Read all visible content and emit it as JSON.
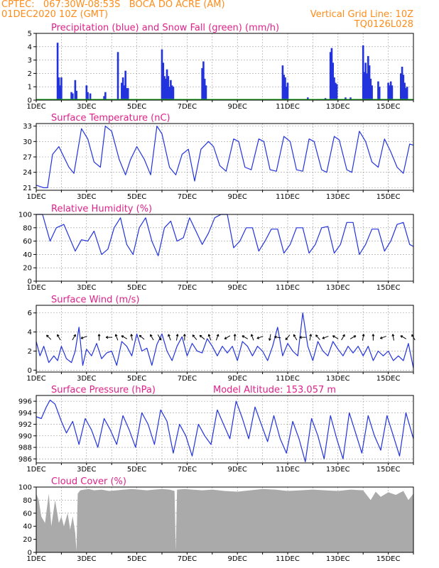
{
  "header": {
    "line1": "CPTEC:   067:30W-08:53S   BOCA DO ACRE (AM)",
    "line2": "01DEC2020 10Z (GMT)",
    "grid_note": "Vertical Grid Line: 10Z",
    "code": "TQ0126L028"
  },
  "colors": {
    "header": "#ff8c1a",
    "title": "#e0218a",
    "line": "#2233dd",
    "snow": "#22aa22",
    "cloud": "#aaaaaa",
    "arrow": "#000000"
  },
  "x_labels": [
    "1DEC",
    "3DEC",
    "5DEC",
    "7DEC",
    "9DEC",
    "11DEC",
    "13DEC",
    "15DEC"
  ],
  "chart_data": [
    {
      "type": "bar",
      "title": "Precipitation (blue) and Snow Fall (green) (mm/h)",
      "ylim": [
        0,
        5
      ],
      "yticks": [
        0,
        1,
        2,
        3,
        4,
        5
      ],
      "x_days": [
        1.85,
        1.9,
        1.95,
        2.0,
        2.4,
        2.45,
        2.55,
        2.6,
        3.0,
        3.05,
        3.15,
        3.7,
        3.75,
        4.25,
        4.4,
        4.45,
        4.5,
        4.55,
        4.6,
        4.65,
        6.0,
        6.05,
        6.1,
        6.15,
        6.2,
        6.25,
        6.3,
        6.35,
        6.4,
        6.45,
        7.6,
        7.65,
        7.7,
        7.75,
        10.8,
        10.85,
        10.9,
        10.95,
        11.0,
        11.8,
        12.5,
        12.7,
        12.75,
        12.8,
        12.85,
        12.9,
        12.95,
        13.3,
        13.5,
        14.0,
        14.05,
        14.1,
        14.15,
        14.2,
        14.25,
        14.3,
        14.35,
        14.6,
        14.65,
        15.0,
        15.05,
        15.1,
        15.15,
        15.5,
        15.55,
        15.6,
        15.65,
        15.7,
        15.75
      ],
      "values": [
        4.3,
        1.7,
        1.1,
        1.7,
        0.6,
        0.5,
        1.5,
        0.7,
        1.1,
        0.6,
        0.5,
        0.3,
        0.6,
        3.6,
        1.3,
        1.7,
        1.1,
        2.2,
        0.9,
        0.9,
        3.8,
        2.8,
        1.8,
        1.6,
        2.3,
        1.8,
        1.0,
        1.5,
        1.1,
        1.0,
        2.4,
        2.9,
        1.6,
        1.1,
        2.6,
        1.9,
        1.7,
        1.0,
        1.3,
        0.2,
        0.15,
        3.6,
        3.9,
        2.8,
        1.7,
        1.3,
        1.2,
        0.2,
        0.2,
        4.1,
        2.1,
        2.8,
        2.0,
        3.3,
        2.6,
        1.6,
        1.1,
        1.4,
        1.0,
        1.3,
        1.1,
        1.4,
        1.1,
        2.0,
        2.5,
        1.9,
        1.3,
        0.9,
        1.0
      ],
      "snow": 0
    },
    {
      "type": "line",
      "title": "Surface Temperature (nC)",
      "ylim": [
        20.5,
        33.5
      ],
      "yticks": [
        21,
        24,
        27,
        30,
        33
      ],
      "x_days": [
        1.0,
        1.3,
        1.45,
        1.65,
        1.9,
        2.1,
        2.3,
        2.5,
        2.8,
        3.05,
        3.3,
        3.55,
        3.75,
        4.0,
        4.3,
        4.55,
        4.75,
        5.0,
        5.3,
        5.55,
        5.8,
        6.0,
        6.3,
        6.55,
        6.8,
        7.05,
        7.3,
        7.55,
        7.85,
        8.05,
        8.3,
        8.55,
        8.85,
        9.05,
        9.3,
        9.55,
        9.85,
        10.05,
        10.3,
        10.55,
        10.85,
        11.1,
        11.35,
        11.6,
        11.85,
        12.05,
        12.35,
        12.55,
        12.85,
        13.05,
        13.35,
        13.55,
        13.85,
        14.1,
        14.35,
        14.6,
        14.85,
        15.1,
        15.35,
        15.6,
        15.85,
        16.0
      ],
      "values": [
        21.5,
        21.0,
        21.0,
        27.5,
        29.0,
        27.0,
        25.0,
        23.8,
        32.5,
        30.5,
        26.0,
        25.0,
        33.0,
        32.0,
        26.5,
        23.5,
        26.5,
        29.0,
        26.5,
        23.5,
        33.0,
        31.5,
        25.0,
        23.5,
        27.5,
        28.5,
        22.3,
        28.5,
        30.0,
        29.0,
        25.3,
        24.2,
        30.5,
        30.0,
        25.0,
        24.5,
        30.5,
        30.0,
        24.5,
        24.2,
        31.0,
        30.0,
        24.5,
        24.2,
        30.5,
        30.0,
        24.5,
        24.0,
        31.0,
        30.3,
        24.5,
        24.0,
        32.0,
        30.0,
        26.0,
        25.0,
        30.5,
        28.0,
        25.0,
        23.8,
        29.5,
        29.3
      ]
    },
    {
      "type": "line",
      "title": "Relative Humidity (%)",
      "ylim": [
        0,
        100
      ],
      "yticks": [
        0,
        20,
        40,
        60,
        80,
        100
      ],
      "x_days": [
        1.0,
        1.25,
        1.55,
        1.8,
        2.1,
        2.55,
        2.8,
        3.05,
        3.3,
        3.6,
        3.85,
        4.1,
        4.35,
        4.6,
        4.85,
        5.1,
        5.35,
        5.6,
        5.85,
        6.1,
        6.35,
        6.6,
        6.85,
        7.1,
        7.35,
        7.6,
        7.85,
        8.1,
        8.35,
        8.6,
        8.85,
        9.1,
        9.35,
        9.6,
        9.85,
        10.1,
        10.35,
        10.6,
        10.85,
        11.1,
        11.35,
        11.6,
        11.85,
        12.1,
        12.35,
        12.6,
        12.85,
        13.1,
        13.35,
        13.6,
        13.85,
        14.1,
        14.35,
        14.6,
        14.85,
        15.1,
        15.35,
        15.6,
        15.85,
        16.0
      ],
      "values": [
        100,
        100,
        60,
        80,
        85,
        45,
        62,
        60,
        75,
        40,
        48,
        80,
        95,
        55,
        40,
        80,
        95,
        60,
        38,
        80,
        90,
        60,
        65,
        95,
        75,
        55,
        72,
        95,
        100,
        100,
        50,
        60,
        80,
        80,
        45,
        60,
        78,
        78,
        42,
        55,
        80,
        80,
        42,
        55,
        80,
        82,
        42,
        55,
        88,
        88,
        40,
        55,
        78,
        78,
        45,
        60,
        85,
        88,
        55,
        52
      ]
    },
    {
      "type": "line",
      "title": "Surface Wind (m/s)",
      "ylim": [
        -0.2,
        6.8
      ],
      "yticks": [
        0,
        2,
        4,
        6
      ],
      "x_days": [
        1.0,
        1.15,
        1.3,
        1.5,
        1.7,
        1.85,
        2.0,
        2.2,
        2.4,
        2.55,
        2.7,
        2.85,
        3.0,
        3.2,
        3.4,
        3.6,
        3.8,
        4.0,
        4.2,
        4.4,
        4.6,
        4.8,
        5.0,
        5.2,
        5.4,
        5.6,
        5.8,
        6.0,
        6.2,
        6.4,
        6.6,
        6.8,
        7.0,
        7.2,
        7.4,
        7.6,
        7.8,
        8.0,
        8.2,
        8.4,
        8.6,
        8.8,
        9.0,
        9.2,
        9.4,
        9.6,
        9.8,
        10.0,
        10.2,
        10.4,
        10.6,
        10.8,
        11.0,
        11.2,
        11.4,
        11.6,
        11.8,
        12.0,
        12.2,
        12.4,
        12.6,
        12.8,
        13.0,
        13.2,
        13.4,
        13.6,
        13.8,
        14.0,
        14.2,
        14.4,
        14.6,
        14.8,
        15.0,
        15.2,
        15.4,
        15.6,
        15.8,
        16.0
      ],
      "values": [
        3.0,
        1.5,
        2.5,
        0.8,
        1.5,
        1.0,
        2.5,
        1.2,
        0.8,
        2.0,
        4.5,
        0.5,
        2.2,
        1.5,
        2.8,
        1.2,
        1.8,
        2.0,
        0.5,
        3.0,
        2.5,
        1.5,
        3.8,
        2.0,
        2.3,
        0.5,
        2.7,
        3.8,
        2.0,
        1.0,
        2.5,
        3.5,
        1.5,
        2.8,
        2.0,
        1.8,
        3.3,
        2.5,
        1.5,
        2.5,
        1.8,
        2.5,
        1.0,
        3.0,
        2.5,
        1.5,
        2.5,
        2.0,
        1.0,
        2.5,
        4.5,
        1.5,
        2.8,
        2.0,
        1.5,
        6.0,
        2.5,
        1.0,
        3.0,
        2.0,
        1.5,
        3.0,
        2.2,
        1.5,
        2.5,
        1.8,
        2.5,
        1.5,
        2.5,
        1.0,
        2.0,
        1.5,
        2.0,
        1.0,
        1.5,
        1.0,
        2.8,
        0.2
      ],
      "arrows_x": [
        1.5,
        1.9,
        2.5,
        2.9,
        3.5,
        3.9,
        4.2,
        4.5,
        4.8,
        5.2,
        5.6,
        5.9,
        6.3,
        6.6,
        6.9,
        7.3,
        7.6,
        7.9,
        8.2,
        8.6,
        8.9,
        9.3,
        9.6,
        9.9,
        10.3,
        10.6,
        11.0,
        11.3,
        11.6,
        11.9,
        12.2,
        12.5,
        12.9,
        13.2,
        13.6,
        14.0,
        14.4,
        14.8,
        15.2,
        15.6,
        16.0
      ],
      "arrows_dir": [
        135,
        120,
        60,
        200,
        90,
        180,
        110,
        150,
        100,
        140,
        120,
        300,
        110,
        80,
        90,
        130,
        140,
        110,
        70,
        210,
        90,
        150,
        110,
        200,
        260,
        170,
        230,
        120,
        180,
        80,
        130,
        200,
        150,
        60,
        30,
        80,
        90,
        200,
        100,
        150,
        120
      ]
    },
    {
      "type": "line",
      "title": "Surface Pressure (hPa)",
      "annotation": "Model Altitude: 153.057 m",
      "ylim": [
        985.3,
        997
      ],
      "yticks": [
        986,
        988,
        990,
        992,
        994,
        996
      ],
      "x_days": [
        1.0,
        1.2,
        1.4,
        1.55,
        1.75,
        2.0,
        2.2,
        2.45,
        2.7,
        2.95,
        3.2,
        3.45,
        3.7,
        3.95,
        4.2,
        4.45,
        4.7,
        4.95,
        5.2,
        5.45,
        5.7,
        5.95,
        6.2,
        6.45,
        6.7,
        6.95,
        7.2,
        7.45,
        7.7,
        7.95,
        8.2,
        8.45,
        8.7,
        8.95,
        9.2,
        9.45,
        9.7,
        9.95,
        10.2,
        10.45,
        10.7,
        10.95,
        11.2,
        11.45,
        11.7,
        11.95,
        12.2,
        12.45,
        12.7,
        12.95,
        13.2,
        13.45,
        13.7,
        13.95,
        14.2,
        14.45,
        14.7,
        14.95,
        15.2,
        15.45,
        15.7,
        16.0
      ],
      "values": [
        993.3,
        993.0,
        995.0,
        996.2,
        995.5,
        992.5,
        990.5,
        992.5,
        988.5,
        993.0,
        991.0,
        988.0,
        993.0,
        991.0,
        988.5,
        993.5,
        991.0,
        988.0,
        994.0,
        992.0,
        988.5,
        994.5,
        992.5,
        987.0,
        992.0,
        990.0,
        986.5,
        992.0,
        990.0,
        988.5,
        994.5,
        992.0,
        989.5,
        996.0,
        993.0,
        989.5,
        995.0,
        992.0,
        989.0,
        993.5,
        989.5,
        987.0,
        992.5,
        989.5,
        985.5,
        993.0,
        990.0,
        986.0,
        993.5,
        989.5,
        986.0,
        994.0,
        990.5,
        987.0,
        993.5,
        990.0,
        987.5,
        993.5,
        990.0,
        986.5,
        994.0,
        989.5
      ]
    },
    {
      "type": "area",
      "title": "Cloud Cover (%)",
      "ylim": [
        0,
        100
      ],
      "yticks": [
        0,
        20,
        40,
        60,
        80,
        100
      ],
      "x_days": [
        1.0,
        1.1,
        1.2,
        1.35,
        1.5,
        1.6,
        1.75,
        1.9,
        2.0,
        2.1,
        2.25,
        2.35,
        2.45,
        2.55,
        2.6,
        2.65,
        2.75,
        2.9,
        3.1,
        3.3,
        3.6,
        3.9,
        4.2,
        4.5,
        4.8,
        5.1,
        5.4,
        5.7,
        6.0,
        6.3,
        6.5,
        6.55,
        6.6,
        6.9,
        7.2,
        7.6,
        8.0,
        8.5,
        9.0,
        9.5,
        10.0,
        10.5,
        11.0,
        11.5,
        12.0,
        12.5,
        13.0,
        13.5,
        14.0,
        14.3,
        14.5,
        14.7,
        15.0,
        15.3,
        15.6,
        15.8,
        16.0
      ],
      "values": [
        90,
        80,
        55,
        45,
        90,
        40,
        80,
        45,
        55,
        40,
        60,
        35,
        55,
        30,
        2,
        90,
        95,
        96,
        97,
        95,
        96,
        94,
        95,
        96,
        97,
        96,
        95,
        96,
        97,
        96,
        94,
        2,
        96,
        97,
        96,
        95,
        96,
        94,
        93,
        95,
        97,
        96,
        94,
        95,
        96,
        95,
        94,
        96,
        95,
        80,
        93,
        85,
        92,
        88,
        94,
        80,
        90
      ]
    }
  ]
}
